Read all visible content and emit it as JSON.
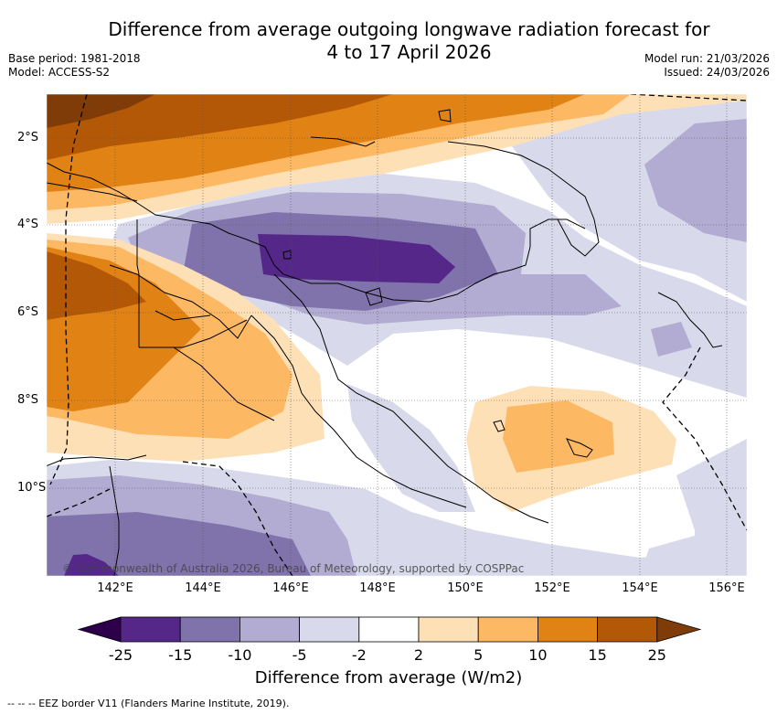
{
  "header": {
    "title_line1": "Difference from average outgoing longwave radiation forecast for",
    "title_line2": "4 to 17 April 2026",
    "base_period": "Base period: 1981-2018",
    "model": "Model: ACCESS-S2",
    "model_run": "Model run: 21/03/2026",
    "issued": "Issued: 24/03/2026"
  },
  "map": {
    "lat_labels": [
      "2°S",
      "4°S",
      "6°S",
      "8°S",
      "10°S"
    ],
    "lon_labels": [
      "142°E",
      "144°E",
      "146°E",
      "148°E",
      "150°E",
      "152°E",
      "154°E",
      "156°E"
    ],
    "copyright": "© Commonwealth of Australia 2026, Bureau of Meteorology, supported by COSPPac"
  },
  "colorbar": {
    "ticks": [
      "-25",
      "-15",
      "-10",
      "-5",
      "-2",
      "2",
      "5",
      "10",
      "15",
      "25"
    ],
    "colors": [
      "#2d004b",
      "#542788",
      "#8073ac",
      "#b2abd2",
      "#d8daeb",
      "#ffffff",
      "#fee0b6",
      "#fdb863",
      "#e08214",
      "#b35806",
      "#7f3b08"
    ],
    "label": "Difference from average (W/m2)"
  },
  "footer": {
    "legend": "-- -- -- EEZ border V11 (Flanders Marine Institute, 2019)."
  }
}
